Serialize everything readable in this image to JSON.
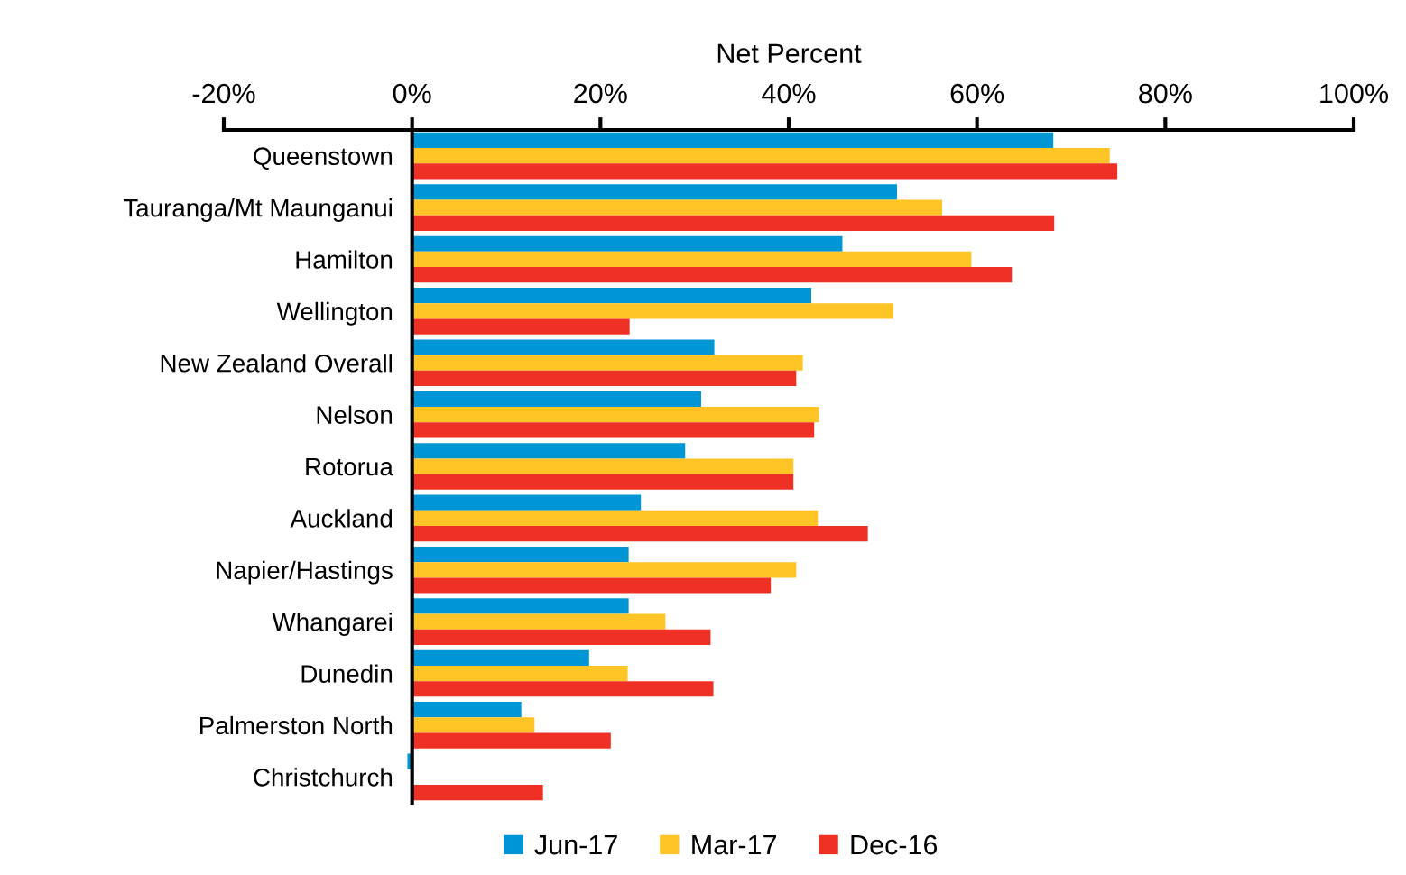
{
  "chart_data": {
    "type": "bar",
    "orientation": "horizontal",
    "xlabel": "Net Percent",
    "categories": [
      "Queenstown",
      "Tauranga/Mt Maunganui",
      "Hamilton",
      "Wellington",
      "New Zealand Overall",
      "Nelson",
      "Rotorua",
      "Auckland",
      "Napier/Hastings",
      "Whangarei",
      "Dunedin",
      "Palmerston North",
      "Christchurch"
    ],
    "series": [
      {
        "name": "Jun-17",
        "color": "#0096d6",
        "values": [
          68.1,
          51.5,
          45.7,
          42.4,
          32.1,
          30.7,
          29.0,
          24.3,
          23.0,
          23.0,
          18.8,
          11.6,
          -0.5
        ]
      },
      {
        "name": "Mar-17",
        "color": "#ffc425",
        "values": [
          74.1,
          56.3,
          59.4,
          51.1,
          41.5,
          43.2,
          40.5,
          43.1,
          40.8,
          26.9,
          22.9,
          13.0,
          0
        ]
      },
      {
        "name": "Dec-16",
        "color": "#ef3024",
        "values": [
          74.9,
          68.2,
          63.7,
          23.1,
          40.8,
          42.7,
          40.5,
          48.4,
          38.1,
          31.7,
          32.0,
          21.1,
          13.9
        ]
      }
    ],
    "xlim": [
      -20,
      100
    ],
    "xticks": [
      {
        "value": -20,
        "label": "-20%"
      },
      {
        "value": 0,
        "label": "0%"
      },
      {
        "value": 20,
        "label": "20%"
      },
      {
        "value": 40,
        "label": "40%"
      },
      {
        "value": 60,
        "label": "60%"
      },
      {
        "value": 80,
        "label": "80%"
      },
      {
        "value": 100,
        "label": "100%"
      }
    ],
    "grid": false,
    "legend": "bottom"
  }
}
